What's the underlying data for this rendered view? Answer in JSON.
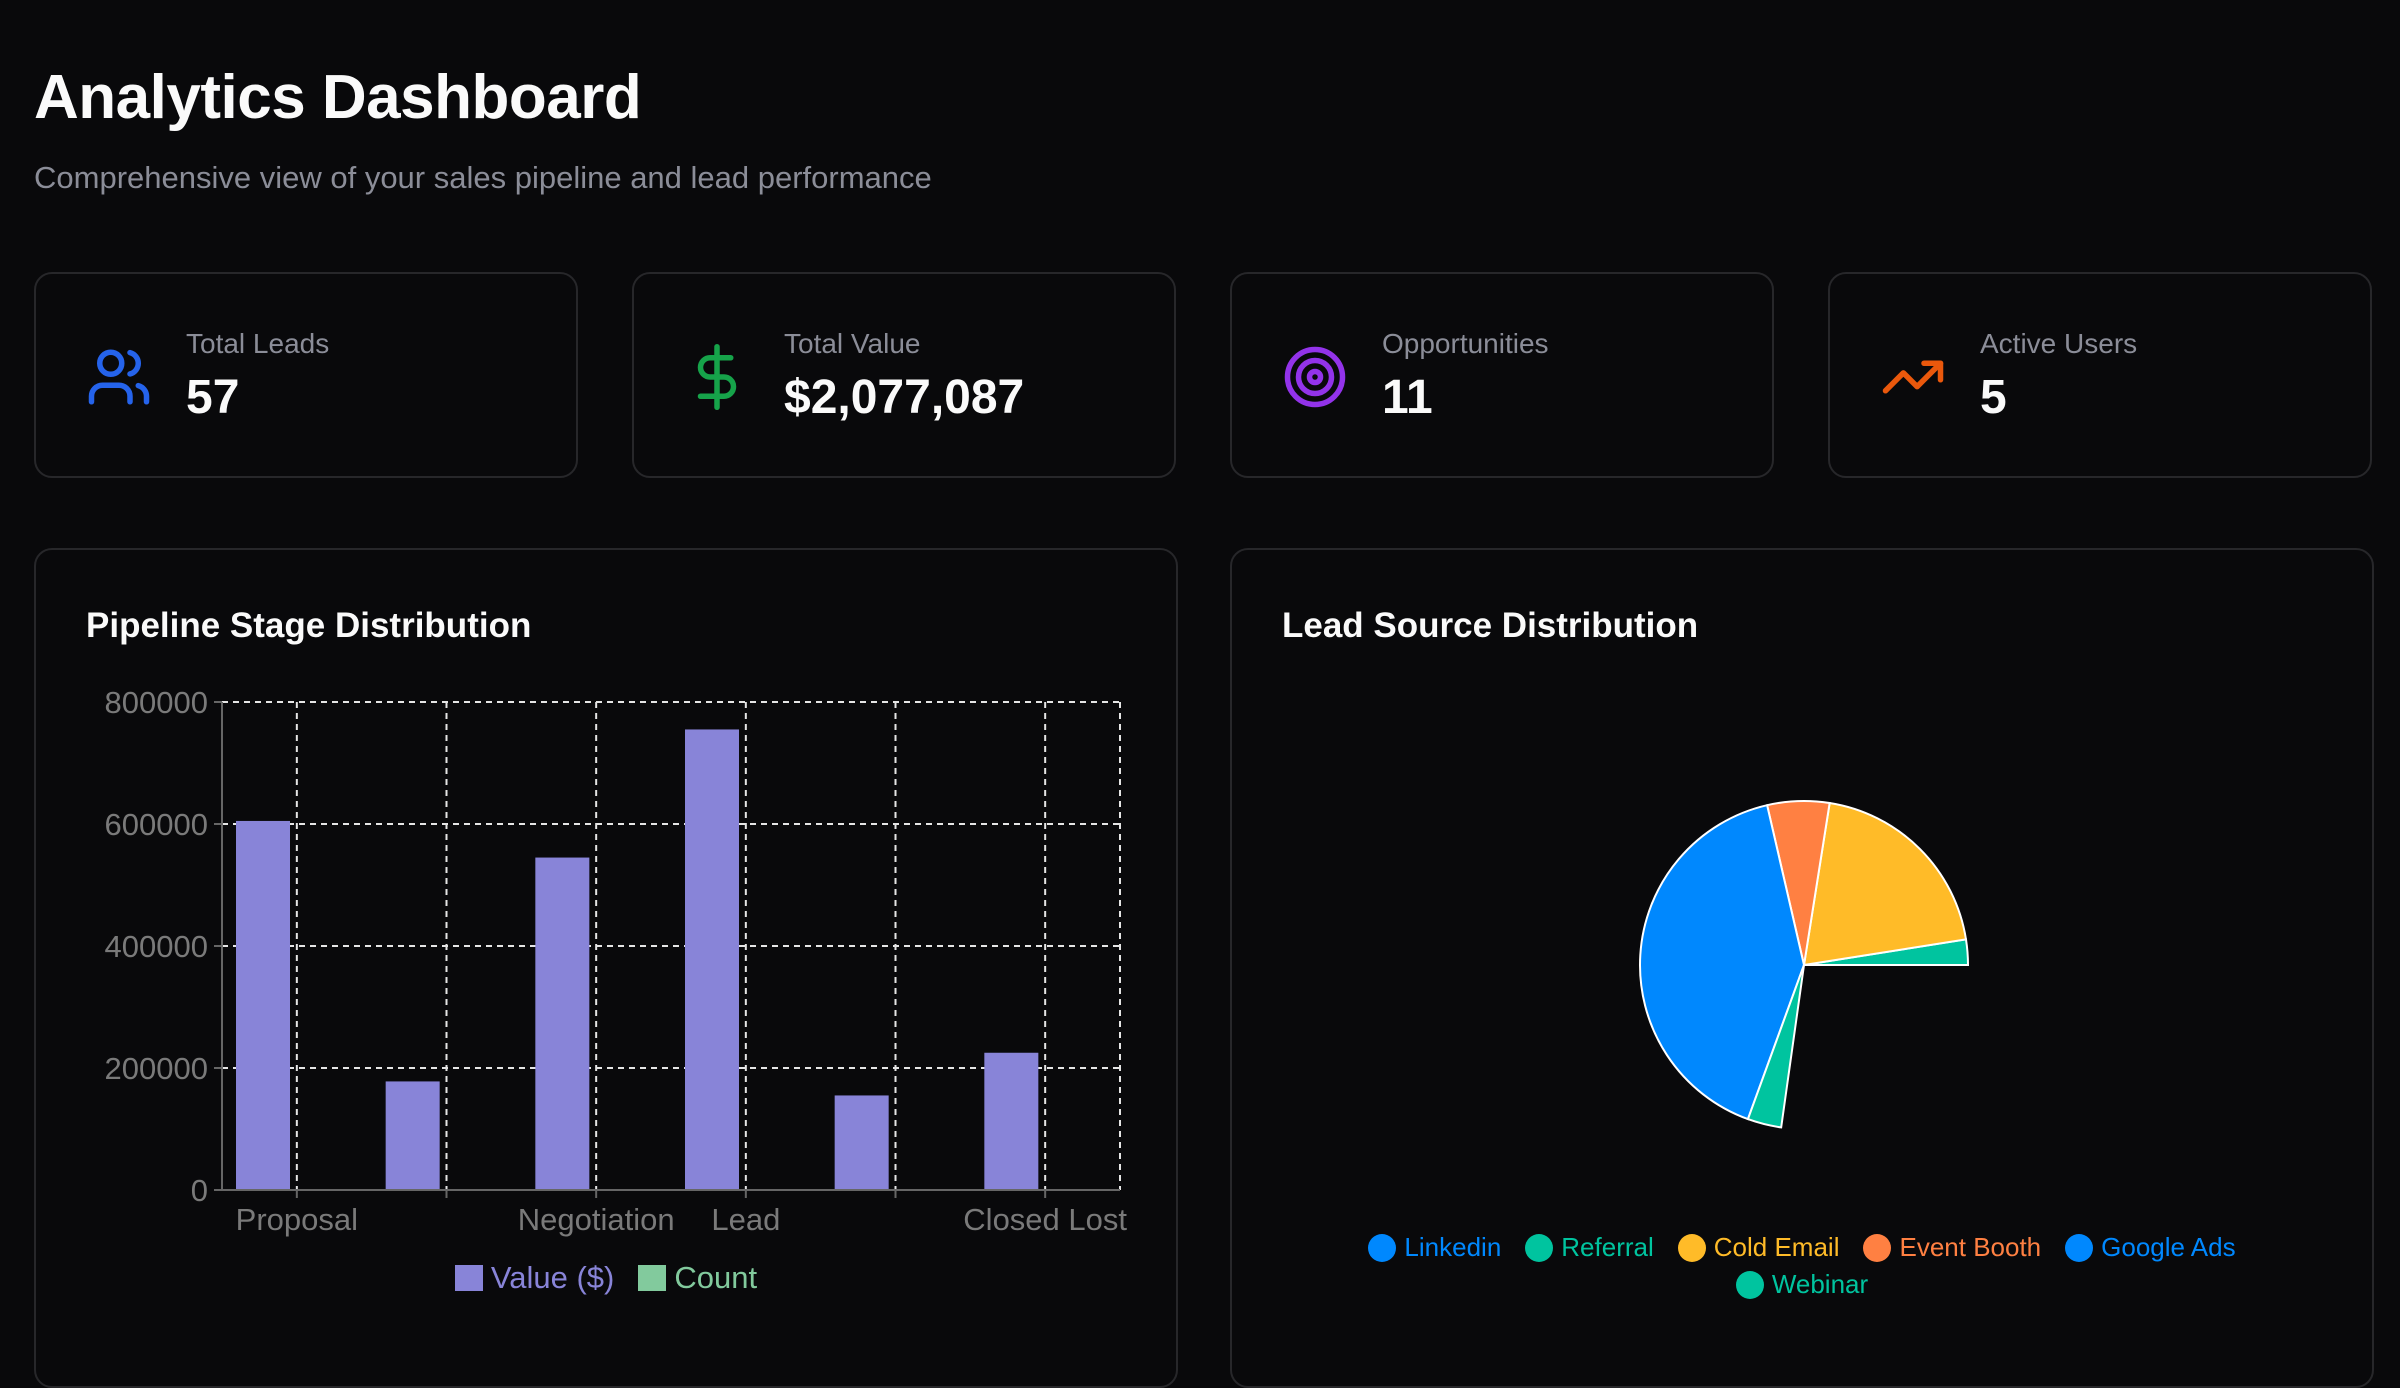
{
  "header": {
    "title": "Analytics Dashboard",
    "subtitle": "Comprehensive view of your sales pipeline and lead performance"
  },
  "stats": [
    {
      "label": "Total Leads",
      "value": "57",
      "icon": "users-icon",
      "color": "#2563eb"
    },
    {
      "label": "Total Value",
      "value": "$2,077,087",
      "icon": "dollar-icon",
      "color": "#16a34a"
    },
    {
      "label": "Opportunities",
      "value": "11",
      "icon": "target-icon",
      "color": "#9333ea"
    },
    {
      "label": "Active Users",
      "value": "5",
      "icon": "trending-up-icon",
      "color": "#ea580c"
    }
  ],
  "chart_data": [
    {
      "type": "bar",
      "title": "Pipeline Stage Distribution",
      "categories": [
        "Proposal",
        "",
        "Negotiation",
        "Lead",
        "",
        "Closed Lost"
      ],
      "series": [
        {
          "name": "Value ($)",
          "color": "#8884d8",
          "values": [
            605000,
            178000,
            545000,
            755000,
            155000,
            225000
          ]
        },
        {
          "name": "Count",
          "color": "#82ca9d",
          "values": [
            0,
            0,
            0,
            0,
            0,
            0
          ]
        }
      ],
      "ylim": [
        0,
        800000
      ],
      "yticks": [
        "0",
        "200000",
        "400000",
        "600000",
        "800000"
      ],
      "grid": true,
      "legend": "bottom"
    },
    {
      "type": "pie",
      "title": "Lead Source Distribution",
      "labels": [
        "Linkedin",
        "Referral",
        "Cold Email",
        "Event Booth",
        "Google Ads",
        "Webinar"
      ],
      "colors": [
        "#0088fe",
        "#00c49f",
        "#ffbb28",
        "#ff8042",
        "#0088fe",
        "#00c49f"
      ],
      "values": [
        0,
        9,
        72,
        22,
        147,
        12
      ],
      "legend": "bottom"
    }
  ]
}
